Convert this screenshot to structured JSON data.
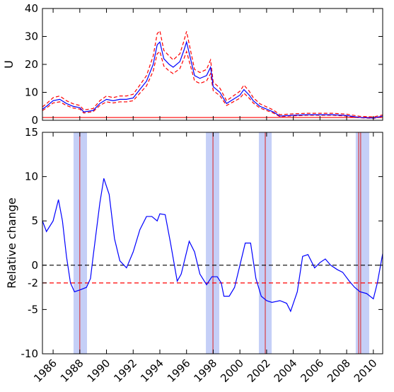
{
  "chart_data": [
    {
      "type": "line",
      "ylabel": "U",
      "x": [
        1985.2,
        1985.5,
        1986,
        1986.5,
        1987,
        1987.5,
        1988,
        1988.3,
        1989,
        1989.5,
        1990,
        1990.5,
        1991,
        1991.5,
        1992,
        1992.5,
        1993,
        1993.5,
        1993.8,
        1994,
        1994.3,
        1994.7,
        1995,
        1995.5,
        1995.8,
        1996,
        1996.3,
        1996.6,
        1997,
        1997.5,
        1997.8,
        1998,
        1998.5,
        1999,
        1999.5,
        2000,
        2000.3,
        2000.7,
        2001,
        2001.5,
        2002,
        2002.5,
        2003,
        2004,
        2005,
        2006,
        2007,
        2008,
        2009,
        2010,
        2010.7
      ],
      "series": [
        {
          "color": "#ff0000",
          "dash": true,
          "values": [
            4.8,
            5.9,
            8.1,
            8.7,
            7,
            5.9,
            5.3,
            3.7,
            4.2,
            7,
            8.7,
            8.1,
            8.7,
            8.7,
            9.3,
            12.6,
            16,
            23,
            31,
            32,
            25,
            23,
            21.6,
            23.8,
            28.3,
            31.8,
            25,
            18.2,
            17.1,
            18.2,
            21.6,
            13.7,
            11.5,
            7,
            8.7,
            10.4,
            12.6,
            10.4,
            8.1,
            5.9,
            4.8,
            3.7,
            2,
            2.3,
            2.5,
            2.5,
            2.5,
            2.2,
            1.4,
            1.2,
            1.9
          ]
        },
        {
          "color": "#ff0000",
          "dash": true,
          "values": [
            3.5,
            4.4,
            6.2,
            6.6,
            5.3,
            4.4,
            4,
            2.6,
            3.1,
            5.3,
            6.6,
            6.2,
            6.6,
            6.6,
            7,
            9.7,
            12.3,
            17.6,
            23.8,
            24.6,
            19.4,
            17.6,
            16.7,
            18.5,
            22,
            24.6,
            19.4,
            14.1,
            13.2,
            14.1,
            16.7,
            10.6,
            8.8,
            5.3,
            6.6,
            7.9,
            9.7,
            7.9,
            6.2,
            4.4,
            3.5,
            2.6,
            1.3,
            1.6,
            1.8,
            1.8,
            1.8,
            1.5,
            0.9,
            0.7,
            1.3
          ]
        },
        {
          "color": "#0000ff",
          "dash": false,
          "values": [
            4,
            5,
            7,
            7.5,
            6,
            5,
            4.5,
            3,
            3.5,
            6,
            7.5,
            7,
            7.5,
            7.5,
            8,
            11,
            14,
            20,
            27,
            28,
            22,
            20,
            19,
            21,
            25,
            28,
            22,
            16,
            15,
            16,
            19,
            12,
            10,
            6,
            7.5,
            9,
            11,
            9,
            7,
            5,
            4,
            3,
            1.5,
            1.8,
            2,
            2,
            2,
            1.7,
            1,
            0.8,
            1.5
          ]
        }
      ],
      "hlines": [
        {
          "value": 1,
          "color": "#ff0000",
          "dash": false
        }
      ],
      "xlim": [
        1985.2,
        2010.7
      ],
      "xticks": [
        1986,
        1988,
        1990,
        1992,
        1994,
        1996,
        1998,
        2000,
        2002,
        2004,
        2006,
        2008,
        2010
      ],
      "show_xticklabels": false,
      "ylim": [
        0,
        40
      ],
      "yticks": [
        0,
        10,
        20,
        30,
        40
      ]
    },
    {
      "type": "line",
      "ylabel": "Relative change",
      "x": [
        1985.2,
        1985.5,
        1986,
        1986.4,
        1986.7,
        1987,
        1987.3,
        1987.6,
        1988,
        1988.5,
        1988.8,
        1989,
        1989.5,
        1989.8,
        1990.2,
        1990.6,
        1991,
        1991.5,
        1992,
        1992.5,
        1993,
        1993.4,
        1993.8,
        1994,
        1994.4,
        1994.8,
        1995.3,
        1995.6,
        1996.2,
        1996.6,
        1997,
        1997.5,
        1997.9,
        1998.3,
        1998.6,
        1998.8,
        1999.2,
        1999.6,
        2000,
        2000.4,
        2000.8,
        2001.2,
        2001.6,
        2002,
        2002.4,
        2003,
        2003.5,
        2003.8,
        2004.3,
        2004.7,
        2005.1,
        2005.6,
        2006,
        2006.4,
        2006.8,
        2007.3,
        2007.7,
        2008.2,
        2008.6,
        2009,
        2009.5,
        2010,
        2010.3,
        2010.7
      ],
      "series": [
        {
          "color": "#0000ff",
          "dash": false,
          "values": [
            5,
            3.8,
            5,
            7.4,
            5,
            1,
            -2,
            -3,
            -2.8,
            -2.5,
            -1.5,
            1,
            7,
            9.8,
            8,
            3,
            0.5,
            -0.3,
            1.5,
            4,
            5.5,
            5.5,
            5,
            5.8,
            5.7,
            2.5,
            -1.8,
            -1,
            2.7,
            1.5,
            -1,
            -2.2,
            -1.3,
            -1.3,
            -2,
            -3.5,
            -3.5,
            -2.5,
            0,
            2.5,
            2.5,
            -1.5,
            -3.5,
            -4,
            -4.2,
            -4,
            -4.3,
            -5.2,
            -3,
            1,
            1.2,
            -0.3,
            0.3,
            0.7,
            0,
            -0.5,
            -0.8,
            -1.8,
            -2.5,
            -3,
            -3.2,
            -3.8,
            -2,
            1.3
          ]
        }
      ],
      "hlines": [
        {
          "value": 0,
          "color": "#000000",
          "dash": true
        },
        {
          "value": -2,
          "color": "#ff0000",
          "dash": true
        }
      ],
      "bands": [
        [
          1987.53,
          1988.54
        ],
        [
          1997.45,
          1998.45
        ],
        [
          2001.42,
          2002.38
        ],
        [
          2008.68,
          2009.69
        ]
      ],
      "band_color": "#c5cff7",
      "events": [
        1988.0,
        1997.98,
        2001.9,
        2008.9,
        2009.05
      ],
      "event_color": "#dd2222",
      "xlim": [
        1985.2,
        2010.7
      ],
      "xticks": [
        1986,
        1988,
        1990,
        1992,
        1994,
        1996,
        1998,
        2000,
        2002,
        2004,
        2006,
        2008,
        2010
      ],
      "show_xticklabels": true,
      "ylim": [
        -10,
        15
      ],
      "yticks": [
        -10,
        -5,
        -2,
        0,
        5,
        10,
        15
      ]
    }
  ]
}
